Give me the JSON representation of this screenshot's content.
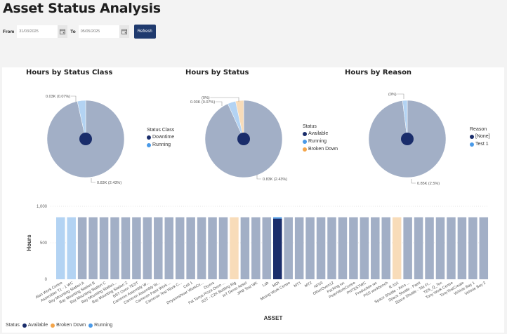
{
  "header": {
    "title": "Asset Status Analysis"
  },
  "filters": {
    "from_label": "From",
    "from_value": "31/03/2025",
    "to_label": "To",
    "to_value": "05/05/2025",
    "refresh_label": "Refresh"
  },
  "colors": {
    "navy": "#1a2d6b",
    "light_blue": "#4a9ae8",
    "orange": "#f4a54a",
    "faded_grey": "#a2afc6",
    "faded_light_blue": "#b3d3f3",
    "faded_orange": "#f8dcb9",
    "accent_button": "#1f3a6e"
  },
  "chart_data": [
    {
      "type": "pie",
      "title": "Hours by Status Class",
      "legend_title": "Status Class",
      "legend": [
        {
          "label": "Downtime",
          "color": "#1a2d6b"
        },
        {
          "label": "Running",
          "color": "#4a9ae8"
        }
      ],
      "slices": [
        {
          "label": "Downtime",
          "value": 0.83,
          "display": "0.83K (2.43%)",
          "color": "#a2afc6"
        },
        {
          "label": "Running",
          "value": 0.03,
          "display": "0.03K (0.07%)",
          "color": "#b3d3f3"
        }
      ],
      "highlight_fraction": 0.0243
    },
    {
      "type": "pie",
      "title": "Hours by Status",
      "legend_title": "Status",
      "legend": [
        {
          "label": "Available",
          "color": "#1a2d6b"
        },
        {
          "label": "Running",
          "color": "#4a9ae8"
        },
        {
          "label": "Broken Down",
          "color": "#f4a54a"
        }
      ],
      "slices": [
        {
          "label": "Available",
          "value": 0.83,
          "display": "0.83K (2.43%)",
          "color": "#a2afc6"
        },
        {
          "label": "Running",
          "value": 0.03,
          "display": "0.03K (0.07%)",
          "color": "#b3d3f3"
        },
        {
          "label": "Broken Down",
          "value": 0.03,
          "display": "(0%)",
          "color": "#f8dcb9"
        }
      ],
      "highlight_fraction": 0.0243
    },
    {
      "type": "pie",
      "title": "Hours by Reason",
      "legend_title": "Reason",
      "legend": [
        {
          "label": "[None]",
          "color": "#1a2d6b"
        },
        {
          "label": "Test 1",
          "color": "#4a9ae8"
        }
      ],
      "slices": [
        {
          "label": "[None]",
          "value": 0.85,
          "display": "0.85K (2.5%)",
          "color": "#a2afc6"
        },
        {
          "label": "Test 1",
          "value": 0.017,
          "display": "(0%)",
          "color": "#b3d3f3"
        }
      ],
      "highlight_fraction": 0.025
    },
    {
      "type": "bar",
      "title": "",
      "xlabel": "ASSET",
      "ylabel": "Hours",
      "ylim": [
        0,
        1000
      ],
      "yticks": [
        "0",
        "500",
        "1,000"
      ],
      "ytick_values": [
        0,
        500,
        1000
      ],
      "legend_title": "Status",
      "legend": [
        {
          "label": "Available",
          "color": "#1a2d6b"
        },
        {
          "label": "Broken Down",
          "color": "#f4a54a"
        },
        {
          "label": "Running",
          "color": "#4a9ae8"
        }
      ],
      "categories": [
        "Alan Work Centre",
        "Assembler T1 - 1 WC",
        "Bay Mounting Station A",
        "Bay Mounting Station B",
        "Bay Mounting Station C",
        "Bay Mounting Station...",
        "Bay Mounting Station Z",
        "BST Oven TEST",
        "Cameron Assembly W...",
        "Cameron Assembly W...",
        "Cameron Paint Work ...",
        "Cameron Test Work C...",
        "Cell 1",
        "Dnyaneshwar WorkCe...",
        "Dryers",
        "Fat Tonys Pizza Oven ...",
        "IIOT - C2K Bottling Rig",
        "IoT Demo Asset",
        "JPM Test WK",
        "Lab",
        "MOI",
        "Mixing Work Centre",
        "MT1",
        "MT2",
        "NF03",
        "OtherOven12",
        "Packing wc",
        "PeterWorkCentre",
        "PHTESTWC",
        "Production wc",
        "PSS workbench",
        "R-101",
        "Space Shuttle - Aero ...",
        "Space Shuttle - Paint",
        "Space Shuttle - Tile Fl...",
        "TES_Q_Tec",
        "Tony Work Centre",
        "TonyTestCreate",
        "Vehicle Bay 1",
        "Vehicle Bay 2"
      ],
      "values": [
        850,
        850,
        850,
        850,
        850,
        850,
        850,
        850,
        850,
        850,
        850,
        850,
        850,
        850,
        850,
        850,
        850,
        850,
        850,
        850,
        850,
        850,
        850,
        850,
        850,
        850,
        850,
        850,
        850,
        850,
        850,
        850,
        850,
        850,
        850,
        850,
        850,
        850,
        850,
        850
      ],
      "status": [
        "Running",
        "Running",
        "Available",
        "Available",
        "Available",
        "Available",
        "Available",
        "Available",
        "Available",
        "Available",
        "Available",
        "Available",
        "Available",
        "Available",
        "Available",
        "Available",
        "Broken Down",
        "Available",
        "Available",
        "Available",
        "Available",
        "Available",
        "Available",
        "Available",
        "Available",
        "Available",
        "Available",
        "Available",
        "Available",
        "Available",
        "Available",
        "Broken Down",
        "Available",
        "Available",
        "Available",
        "Available",
        "Available",
        "Available",
        "Available",
        "Available"
      ],
      "highlighted": {
        "category": "MOI",
        "available": 830,
        "running": 20
      }
    }
  ]
}
